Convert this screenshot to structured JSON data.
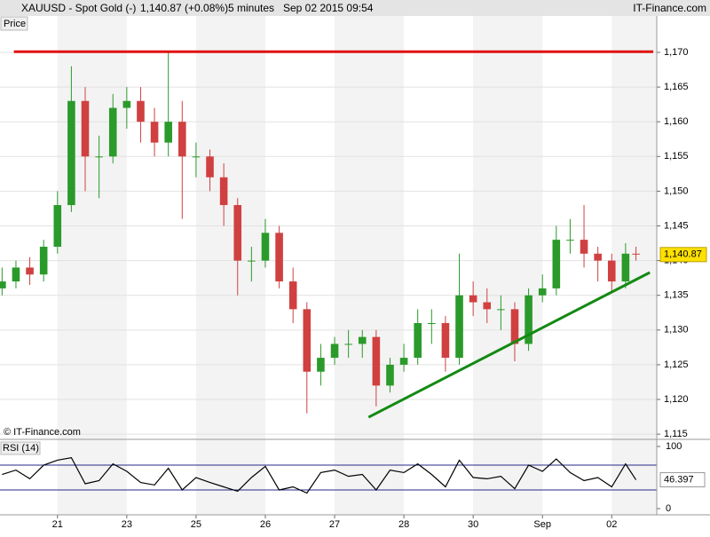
{
  "header": {
    "title": "XAUUSD - Spot Gold (-)",
    "quote": "1,140.87 (+0.08%)",
    "interval": "5 minutes",
    "timestamp": "Sep 02 2015 09:54",
    "brand": "IT-Finance.com",
    "panel_label": "Price",
    "copyright": "© IT-Finance.com"
  },
  "chart_data": [
    {
      "type": "candlestick",
      "up_color": "#2a9a2a",
      "down_color": "#d04040",
      "x": [
        -0.8,
        -0.6,
        -0.4,
        -0.2,
        0,
        0.2,
        0.4,
        0.6,
        0.8,
        1,
        1.2,
        1.4,
        1.6,
        1.8,
        2,
        2.2,
        2.4,
        2.6,
        2.8,
        3,
        3.2,
        3.4,
        3.6,
        3.8,
        4,
        4.2,
        4.4,
        4.6,
        4.8,
        5,
        5.2,
        5.4,
        5.6,
        5.8,
        6,
        6.2,
        6.4,
        6.6,
        6.8,
        7,
        7.2,
        7.4,
        7.6,
        7.8,
        8,
        8.2,
        8.35
      ],
      "open": [
        1136,
        1137,
        1139,
        1138,
        1142,
        1148,
        1163,
        1155,
        1155,
        1162,
        1163,
        1160,
        1157,
        1160,
        1155,
        1155,
        1152,
        1148,
        1140,
        1140,
        1144,
        1137,
        1133,
        1124,
        1126,
        1128,
        1128,
        1129,
        1122,
        1125,
        1126,
        1131,
        1131,
        1126,
        1135,
        1134,
        1133,
        1133,
        1128,
        1135,
        1136,
        1143,
        1143,
        1141,
        1140,
        1137,
        1141
      ],
      "high": [
        1139,
        1140,
        1140.5,
        1143,
        1150,
        1168,
        1165,
        1158,
        1164,
        1165,
        1165,
        1162,
        1170,
        1163,
        1157,
        1156,
        1154,
        1149,
        1142,
        1146,
        1145,
        1139,
        1134,
        1128,
        1129,
        1130,
        1130,
        1130,
        1126,
        1128,
        1133,
        1133,
        1132,
        1141,
        1137,
        1136,
        1135,
        1134,
        1136,
        1138,
        1145,
        1146,
        1148,
        1142,
        1141,
        1142.5,
        1142
      ],
      "low": [
        1135,
        1136,
        1136.5,
        1137,
        1141,
        1147,
        1150,
        1149,
        1154,
        1159,
        1157,
        1155,
        1155,
        1146,
        1152,
        1150,
        1145,
        1135,
        1137,
        1139,
        1136,
        1131,
        1118,
        1122,
        1125,
        1126,
        1126,
        1119,
        1121,
        1124,
        1125,
        1128,
        1124,
        1125,
        1132,
        1131,
        1130,
        1125.5,
        1127,
        1134,
        1135,
        1141,
        1139,
        1137,
        1135.5,
        1136,
        1140
      ],
      "close": [
        1137,
        1139,
        1138,
        1142,
        1148,
        1163,
        1155,
        1155,
        1162,
        1163,
        1160,
        1157,
        1160,
        1155,
        1155,
        1152,
        1148,
        1140,
        1140,
        1144,
        1137,
        1133,
        1124,
        1126,
        1128,
        1128,
        1129,
        1122,
        1125,
        1126,
        1131,
        1131,
        1126,
        1135,
        1134,
        1133,
        1133,
        1128,
        1135,
        1136,
        1143,
        1143,
        1141,
        1140,
        1137,
        1141,
        1140.87
      ],
      "xlim": [
        -0.83,
        8.65
      ],
      "xticks": [
        {
          "value": 0,
          "label": "21"
        },
        {
          "value": 1,
          "label": "23"
        },
        {
          "value": 2,
          "label": "25"
        },
        {
          "value": 3,
          "label": "26"
        },
        {
          "value": 4,
          "label": "27"
        },
        {
          "value": 5,
          "label": "28"
        },
        {
          "value": 6,
          "label": "30"
        },
        {
          "value": 7,
          "label": "Sep"
        },
        {
          "value": 8,
          "label": "02"
        }
      ],
      "ylim": [
        1114.25,
        1175.24
      ],
      "yticks": [
        {
          "value": 1115,
          "label": "1,115"
        },
        {
          "value": 1120,
          "label": "1,120"
        },
        {
          "value": 1125,
          "label": "1,125"
        },
        {
          "value": 1130,
          "label": "1,130"
        },
        {
          "value": 1135,
          "label": "1,135"
        },
        {
          "value": 1140,
          "label": "1,140"
        },
        {
          "value": 1145,
          "label": "1,145"
        },
        {
          "value": 1150,
          "label": "1,150"
        },
        {
          "value": 1155,
          "label": "1,155"
        },
        {
          "value": 1160,
          "label": "1,160"
        },
        {
          "value": 1165,
          "label": "1,165"
        },
        {
          "value": 1170,
          "label": "1,170"
        }
      ],
      "grid": true,
      "last_value": 1140.87,
      "last_value_label": "1,140.87",
      "trendlines": [
        {
          "color": "#e01010",
          "x": [
            -0.63,
            8.6
          ],
          "y": [
            1170.1,
            1170.1
          ]
        },
        {
          "color": "#138a13",
          "x": [
            4.49,
            8.55
          ],
          "y": [
            1117.44,
            1138.29
          ]
        }
      ]
    },
    {
      "type": "line",
      "name": "RSI (14)",
      "color": "#000000",
      "x": [
        -0.8,
        -0.6,
        -0.4,
        -0.2,
        0,
        0.2,
        0.4,
        0.6,
        0.8,
        1,
        1.2,
        1.4,
        1.6,
        1.8,
        2,
        2.2,
        2.4,
        2.6,
        2.8,
        3,
        3.2,
        3.4,
        3.6,
        3.8,
        4,
        4.2,
        4.4,
        4.6,
        4.8,
        5,
        5.2,
        5.4,
        5.6,
        5.8,
        6,
        6.2,
        6.4,
        6.6,
        6.8,
        7,
        7.2,
        7.4,
        7.6,
        7.8,
        8,
        8.2,
        8.35
      ],
      "values": [
        55,
        62,
        48,
        70,
        78,
        82,
        40,
        45,
        72,
        60,
        42,
        38,
        65,
        30,
        50,
        42,
        35,
        28,
        50,
        68,
        30,
        35,
        25,
        58,
        62,
        52,
        55,
        30,
        62,
        58,
        72,
        55,
        35,
        78,
        50,
        48,
        52,
        32,
        70,
        60,
        80,
        58,
        45,
        50,
        35,
        72,
        46.397
      ],
      "xlim": [
        -0.83,
        8.65
      ],
      "ylim": [
        -10,
        108.6
      ],
      "yticks": [
        0,
        100
      ],
      "levels": [
        30,
        70
      ],
      "level_color": "#2a2a8a"
    }
  ]
}
